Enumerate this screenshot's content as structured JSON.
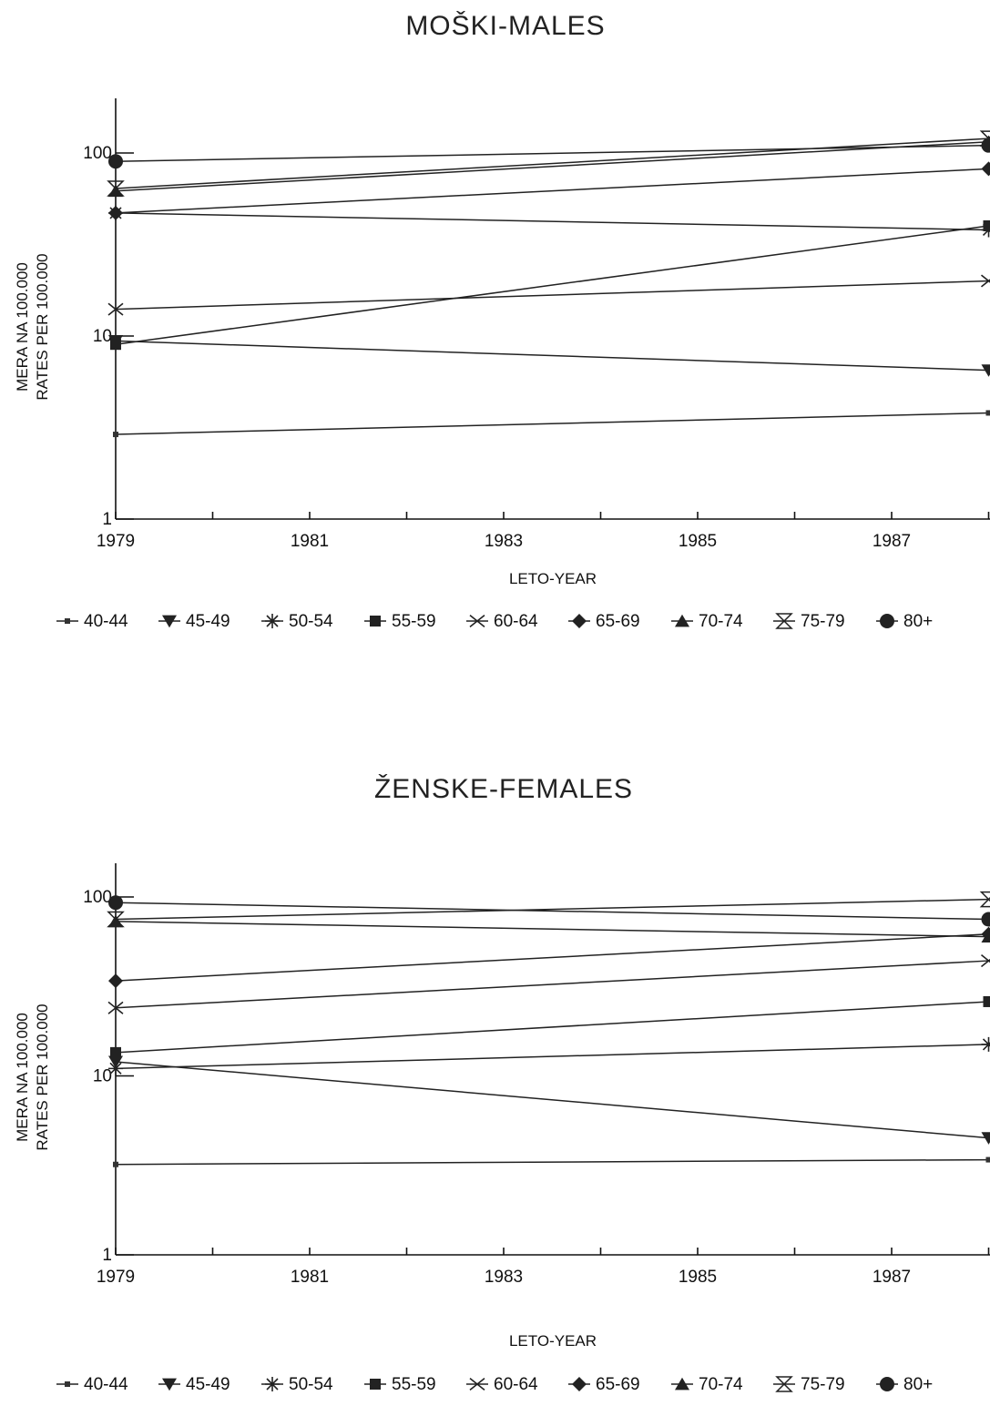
{
  "chart_data": [
    {
      "type": "line",
      "title": "MOŠKI-MALES",
      "xlabel": "LETO-YEAR",
      "ylabel": [
        "MERA NA 100.000",
        "RATES PER 100.000"
      ],
      "y_scale": "log",
      "ylim": [
        1,
        200
      ],
      "xlim": [
        1979,
        1988
      ],
      "x_ticks": [
        "1979",
        "1981",
        "1983",
        "1985",
        "1987"
      ],
      "y_ticks": [
        "1",
        "10",
        "100"
      ],
      "grid": false,
      "legend_position": "bottom",
      "x": [
        1979,
        1988
      ],
      "series": [
        {
          "name": "40-44",
          "marker": "small-square",
          "values": [
            2.9,
            3.8
          ]
        },
        {
          "name": "45-49",
          "marker": "down-triangle",
          "values": [
            9.4,
            6.5
          ]
        },
        {
          "name": "50-54",
          "marker": "asterisk",
          "values": [
            47,
            38
          ]
        },
        {
          "name": "55-59",
          "marker": "square",
          "values": [
            9.0,
            40
          ]
        },
        {
          "name": "60-64",
          "marker": "x",
          "values": [
            14,
            20
          ]
        },
        {
          "name": "65-69",
          "marker": "diamond",
          "values": [
            47,
            82
          ]
        },
        {
          "name": "70-74",
          "marker": "up-triangle",
          "values": [
            62,
            115
          ]
        },
        {
          "name": "75-79",
          "marker": "hourglass",
          "values": [
            64,
            120
          ]
        },
        {
          "name": "80+",
          "marker": "circle",
          "values": [
            90,
            110
          ]
        }
      ]
    },
    {
      "type": "line",
      "title": "ŽENSKE-FEMALES",
      "xlabel": "LETO-YEAR",
      "ylabel": [
        "MERA NA 100.000",
        "RATES PER 100.000"
      ],
      "y_scale": "log",
      "ylim": [
        1,
        200
      ],
      "xlim": [
        1979,
        1988
      ],
      "x_ticks": [
        "1979",
        "1981",
        "1983",
        "1985",
        "1987"
      ],
      "y_ticks": [
        "1",
        "10",
        "100"
      ],
      "grid": false,
      "legend_position": "bottom",
      "x": [
        1979,
        1988
      ],
      "series": [
        {
          "name": "40-44",
          "marker": "small-square",
          "values": [
            3.2,
            3.4
          ]
        },
        {
          "name": "45-49",
          "marker": "down-triangle",
          "values": [
            12,
            4.5
          ]
        },
        {
          "name": "50-54",
          "marker": "asterisk",
          "values": [
            11,
            15
          ]
        },
        {
          "name": "55-59",
          "marker": "square",
          "values": [
            13.5,
            26
          ]
        },
        {
          "name": "60-64",
          "marker": "x",
          "values": [
            24,
            44
          ]
        },
        {
          "name": "65-69",
          "marker": "diamond",
          "values": [
            34,
            62
          ]
        },
        {
          "name": "70-74",
          "marker": "up-triangle",
          "values": [
            73,
            60
          ]
        },
        {
          "name": "75-79",
          "marker": "hourglass",
          "values": [
            75,
            97
          ]
        },
        {
          "name": "80+",
          "marker": "circle",
          "values": [
            93,
            75
          ]
        }
      ]
    }
  ]
}
